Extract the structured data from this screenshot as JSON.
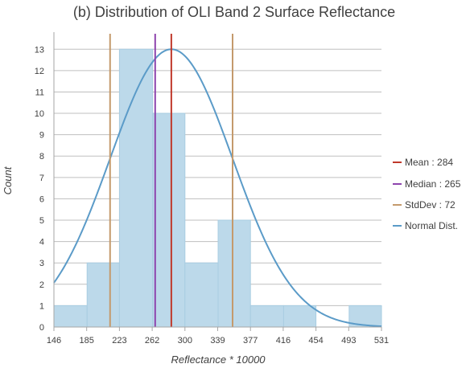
{
  "chart_data": {
    "type": "bar",
    "title": "(b) Distribution of OLI Band 2 Surface Reflectance",
    "xlabel": "Reflectance * 10000",
    "ylabel": "Count",
    "x_ticks": [
      "146",
      "185",
      "223",
      "262",
      "300",
      "339",
      "377",
      "416",
      "454",
      "493",
      "531"
    ],
    "xlim": [
      146,
      531
    ],
    "ylim": [
      0,
      13.8
    ],
    "y_ticks": [
      0,
      1,
      2,
      3,
      4,
      5,
      6,
      7,
      8,
      9,
      10,
      11,
      12,
      13
    ],
    "grid": "horizontal",
    "bins": [
      {
        "x0": 146,
        "x1": 185,
        "count": 1
      },
      {
        "x0": 185,
        "x1": 223,
        "count": 3
      },
      {
        "x0": 223,
        "x1": 262,
        "count": 13
      },
      {
        "x0": 262,
        "x1": 300,
        "count": 10
      },
      {
        "x0": 300,
        "x1": 339,
        "count": 3
      },
      {
        "x0": 339,
        "x1": 377,
        "count": 5
      },
      {
        "x0": 377,
        "x1": 416,
        "count": 1
      },
      {
        "x0": 416,
        "x1": 454,
        "count": 1
      },
      {
        "x0": 454,
        "x1": 493,
        "count": 0
      },
      {
        "x0": 493,
        "x1": 531,
        "count": 1
      }
    ],
    "mean": 284,
    "median": 265,
    "stddev": 72,
    "normal_peak": 13,
    "legend_placement": "right",
    "legend": [
      {
        "label": "Mean : 284",
        "color": "#c0392b"
      },
      {
        "label": "Median : 265",
        "color": "#8e44ad"
      },
      {
        "label": "StdDev : 72",
        "color": "#c49a6c"
      },
      {
        "label": "Normal Dist.",
        "color": "#5b9bc8"
      }
    ],
    "colors": {
      "bar_fill": "#bcd9ea",
      "bar_stroke": "#a9cde2",
      "grid": "#bfbfbf",
      "curve": "#5b9bc8",
      "mean": "#c0392b",
      "median": "#8e44ad",
      "stddev": "#c49a6c"
    }
  }
}
